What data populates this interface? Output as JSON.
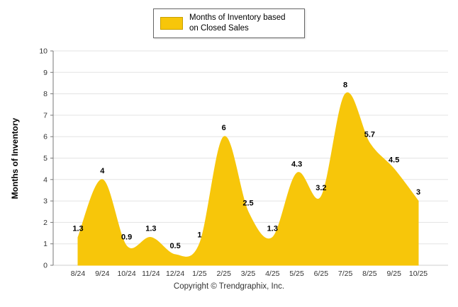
{
  "legend": {
    "label": "Months of Inventory based on Closed Sales",
    "swatch_color": "#F7C60A"
  },
  "chart_data": {
    "type": "area",
    "title": "",
    "series_name": "Months of Inventory based on Closed Sales",
    "categories": [
      "8/24",
      "9/24",
      "10/24",
      "11/24",
      "12/24",
      "1/25",
      "2/25",
      "3/25",
      "4/25",
      "5/25",
      "6/25",
      "7/25",
      "8/25",
      "9/25",
      "10/25"
    ],
    "values": [
      1.3,
      4,
      0.9,
      1.3,
      0.5,
      1,
      6,
      2.5,
      1.3,
      4.3,
      3.2,
      8,
      5.7,
      4.5,
      3
    ],
    "ylabel": "Months of Inventory",
    "xlabel": "",
    "ylim": [
      0,
      10
    ],
    "ytick_step": 1,
    "grid": true,
    "legend_position": "top-center",
    "fill_color": "#F7C60A"
  },
  "footer": {
    "copyright": "Copyright © Trendgraphix, Inc."
  }
}
